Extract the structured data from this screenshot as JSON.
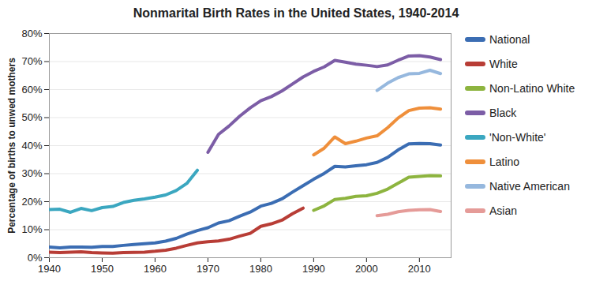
{
  "chart_data": {
    "type": "line",
    "title": "Nonmarital Birth Rates in the United States, 1940-2014",
    "ylabel": "Percentage of births to unwed mothers",
    "x": [
      1940,
      1942,
      1944,
      1946,
      1948,
      1950,
      1952,
      1954,
      1956,
      1958,
      1960,
      1962,
      1964,
      1966,
      1968,
      1970,
      1972,
      1974,
      1976,
      1978,
      1980,
      1982,
      1984,
      1986,
      1988,
      1990,
      1992,
      1994,
      1996,
      1998,
      2000,
      2002,
      2004,
      2006,
      2008,
      2010,
      2012,
      2014
    ],
    "xlim": [
      1940,
      2016
    ],
    "xticks": [
      1940,
      1950,
      1960,
      1970,
      1980,
      1990,
      2000,
      2010
    ],
    "ylim": [
      0,
      80
    ],
    "yticks": [
      {
        "value": 0,
        "label": "0%"
      },
      {
        "value": 10,
        "label": "10%"
      },
      {
        "value": 20,
        "label": "20%"
      },
      {
        "value": 30,
        "label": "30%"
      },
      {
        "value": 40,
        "label": "40%"
      },
      {
        "value": 50,
        "label": "50%"
      },
      {
        "value": 60,
        "label": "60%"
      },
      {
        "value": 70,
        "label": "70%"
      },
      {
        "value": 80,
        "label": "80%"
      }
    ],
    "grid": true,
    "legend": "right",
    "series": [
      {
        "name": "National",
        "color": "#3b6db3",
        "values": [
          3.8,
          3.5,
          3.8,
          3.8,
          3.7,
          4.0,
          4.0,
          4.4,
          4.7,
          5.0,
          5.3,
          5.9,
          6.9,
          8.4,
          9.7,
          10.7,
          12.4,
          13.2,
          14.8,
          16.3,
          18.4,
          19.4,
          21.0,
          23.4,
          25.7,
          28.0,
          30.1,
          32.6,
          32.4,
          32.8,
          33.2,
          34.0,
          35.8,
          38.5,
          40.6,
          40.8,
          40.7,
          40.2
        ]
      },
      {
        "name": "White",
        "color": "#b83d36",
        "values": [
          2.0,
          1.8,
          2.0,
          2.1,
          1.8,
          1.7,
          1.6,
          1.8,
          1.9,
          2.0,
          2.3,
          2.7,
          3.4,
          4.4,
          5.3,
          5.7,
          6.0,
          6.6,
          7.7,
          8.7,
          11.2,
          12.1,
          13.4,
          15.7,
          17.7,
          null,
          null,
          null,
          null,
          null,
          null,
          null,
          null,
          null,
          null,
          null,
          null,
          null
        ]
      },
      {
        "name": "Non-Latino White",
        "color": "#8db43f",
        "values": [
          null,
          null,
          null,
          null,
          null,
          null,
          null,
          null,
          null,
          null,
          null,
          null,
          null,
          null,
          null,
          null,
          null,
          null,
          null,
          null,
          null,
          null,
          null,
          null,
          null,
          16.9,
          18.5,
          20.8,
          21.2,
          21.9,
          22.1,
          23.0,
          24.5,
          26.6,
          28.7,
          29.0,
          29.3,
          29.2
        ]
      },
      {
        "name": "Black",
        "color": "#7c5da6",
        "values": [
          null,
          null,
          null,
          null,
          null,
          null,
          null,
          null,
          null,
          null,
          null,
          null,
          null,
          null,
          null,
          37.6,
          44.0,
          47.0,
          50.5,
          53.5,
          56.0,
          57.5,
          59.5,
          62.0,
          64.5,
          66.5,
          68.1,
          70.4,
          69.8,
          69.1,
          68.7,
          68.2,
          68.8,
          70.5,
          72.0,
          72.1,
          71.6,
          70.7
        ]
      },
      {
        "name": "'Non-White'",
        "color": "#3ba7c0",
        "values": [
          17.2,
          17.3,
          16.2,
          17.6,
          16.8,
          17.9,
          18.3,
          19.7,
          20.5,
          21.0,
          21.6,
          22.4,
          24.0,
          26.5,
          31.2,
          null,
          null,
          null,
          null,
          null,
          null,
          null,
          null,
          null,
          null,
          null,
          null,
          null,
          null,
          null,
          null,
          null,
          null,
          null,
          null,
          null,
          null,
          null
        ]
      },
      {
        "name": "Latino",
        "color": "#ef8f3b",
        "values": [
          null,
          null,
          null,
          null,
          null,
          null,
          null,
          null,
          null,
          null,
          null,
          null,
          null,
          null,
          null,
          null,
          null,
          null,
          null,
          null,
          null,
          null,
          null,
          null,
          null,
          36.7,
          39.1,
          43.1,
          40.7,
          41.6,
          42.7,
          43.5,
          46.4,
          49.9,
          52.5,
          53.4,
          53.5,
          53.0
        ]
      },
      {
        "name": "Native American",
        "color": "#96b8de",
        "values": [
          null,
          null,
          null,
          null,
          null,
          null,
          null,
          null,
          null,
          null,
          null,
          null,
          null,
          null,
          null,
          null,
          null,
          null,
          null,
          null,
          null,
          null,
          null,
          null,
          null,
          null,
          null,
          null,
          null,
          null,
          null,
          59.7,
          62.3,
          64.3,
          65.6,
          65.8,
          66.9,
          65.7
        ]
      },
      {
        "name": "Asian",
        "color": "#e59b98",
        "values": [
          null,
          null,
          null,
          null,
          null,
          null,
          null,
          null,
          null,
          null,
          null,
          null,
          null,
          null,
          null,
          null,
          null,
          null,
          null,
          null,
          null,
          null,
          null,
          null,
          null,
          null,
          null,
          null,
          null,
          null,
          null,
          15.0,
          15.5,
          16.4,
          16.9,
          17.1,
          17.2,
          16.5
        ]
      }
    ]
  }
}
